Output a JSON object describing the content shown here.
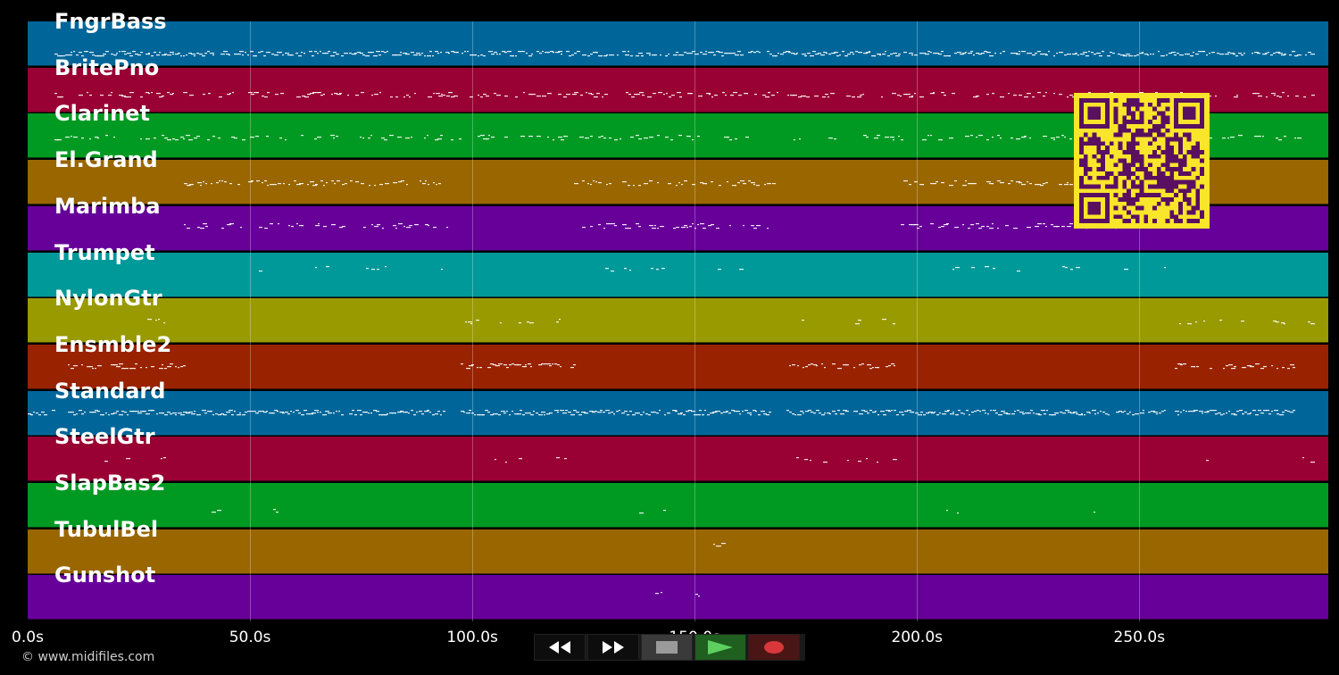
{
  "tracks": [
    {
      "name": "FngrBass",
      "color": "#006699"
    },
    {
      "name": "BritePno",
      "color": "#990033"
    },
    {
      "name": "Clarinet",
      "color": "#009a22"
    },
    {
      "name": "El.Grand",
      "color": "#996600"
    },
    {
      "name": "Marimba",
      "color": "#660099"
    },
    {
      "name": "Trumpet",
      "color": "#009999"
    },
    {
      "name": "NylonGtr",
      "color": "#999900"
    },
    {
      "name": "Ensmble2",
      "color": "#992200"
    },
    {
      "name": "Standard",
      "color": "#006699"
    },
    {
      "name": "SteelGtr",
      "color": "#990033"
    },
    {
      "name": "SlapBas2",
      "color": "#009a22"
    },
    {
      "name": "TubulBel",
      "color": "#996600"
    },
    {
      "name": "Gunshot",
      "color": "#660099"
    }
  ],
  "time_axis": {
    "ticks": [
      "0.0s",
      "50.0s",
      "100.0s",
      "150.0s",
      "200.0s",
      "250.0s"
    ],
    "tick_values_s": [
      0,
      50,
      100,
      150,
      200,
      250
    ],
    "visible_end_s": 292.5
  },
  "transport": {
    "rewind_icon": "rewind-icon",
    "fast_forward_icon": "fast-forward-icon",
    "stop_icon": "stop-icon",
    "play_icon": "play-icon",
    "record_icon": "record-icon"
  },
  "copyright": "© www.midifiles.com",
  "qr_code": {
    "colors": {
      "background": "#f9e52a",
      "modules": "#5a1060"
    }
  }
}
